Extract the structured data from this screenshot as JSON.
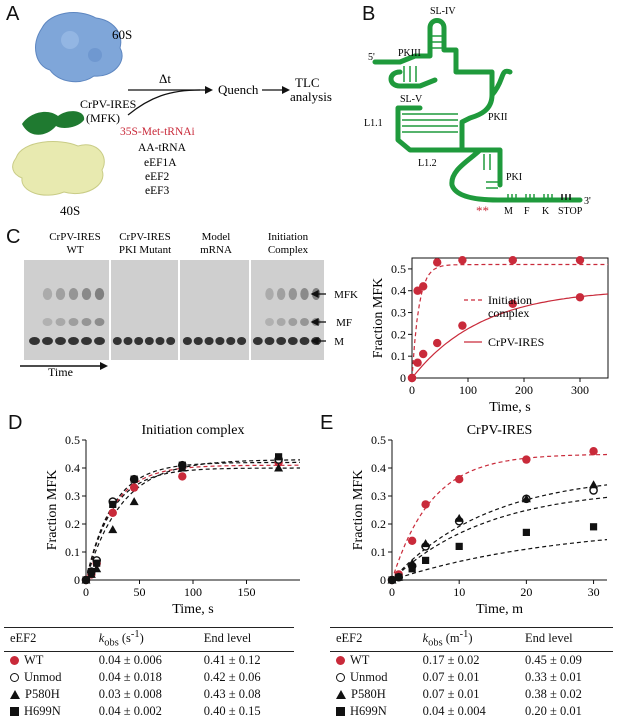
{
  "panels": {
    "a": "A",
    "b": "B",
    "c": "C",
    "d": "D",
    "e": "E"
  },
  "panelA": {
    "ribo_60s": "60S",
    "ribo_40s": "40S",
    "ires_name": "CrPV-IRES",
    "ires_sub": "(MFK)",
    "delta_t": "Δt",
    "quench": "Quench",
    "tlc_1": "TLC",
    "tlc_2": "analysis",
    "reagent_1": "35S-Met-tRNAi",
    "reagent_2": "AA-tRNA",
    "reagent_3": "eEF1A",
    "reagent_4": "eEF2",
    "reagent_5": "eEF3",
    "colors": {
      "ribo60": "#7fa6d9",
      "ribo40": "#e8eab0",
      "ires": "#1f7a30",
      "red": "#c92a3a"
    }
  },
  "panelB": {
    "labels": {
      "sl_iv": "SL-IV",
      "pkiii": "PKIII",
      "sl_v": "SL-V",
      "l11": "L1.1",
      "l12": "L1.2",
      "pkii": "PKII",
      "pki": "PKI",
      "five": "5'",
      "three": "3'",
      "m": "M",
      "f": "F",
      "k": "K",
      "stop": "STOP",
      "stars": "**"
    },
    "color": "#1f9a3c"
  },
  "panelC": {
    "lanes": {
      "wt_1": "CrPV-IRES",
      "wt_2": "WT",
      "pki_1": "CrPV-IRES",
      "pki_2": "PKI Mutant",
      "model_1": "Model",
      "model_2": "mRNA",
      "init_1": "Initiation",
      "init_2": "Complex"
    },
    "bands": {
      "mfk": "MFK",
      "mf": "MF",
      "m": "M"
    },
    "time_label": "Time"
  },
  "chart_data": [
    {
      "id": "C-plot",
      "type": "scatter",
      "xlabel": "Time, s",
      "ylabel": "Fraction MFK",
      "xlim": [
        0,
        350
      ],
      "ylim": [
        0,
        0.55
      ],
      "xticks": [
        0,
        100,
        200,
        300
      ],
      "yticks": [
        0,
        0.1,
        0.2,
        0.3,
        0.4,
        0.5
      ],
      "series": [
        {
          "name": "Initiation complex",
          "style": "dashed",
          "color": "#c92a3a",
          "x": [
            0,
            10,
            20,
            45,
            90,
            180,
            300
          ],
          "y": [
            0,
            0.4,
            0.42,
            0.53,
            0.54,
            0.54,
            0.54
          ],
          "fit": {
            "amp": 0.52,
            "k": 0.08
          }
        },
        {
          "name": "CrPV-IRES",
          "style": "solid",
          "color": "#c92a3a",
          "x": [
            0,
            10,
            20,
            45,
            90,
            180,
            300
          ],
          "y": [
            0,
            0.07,
            0.11,
            0.16,
            0.24,
            0.34,
            0.37
          ],
          "fit": {
            "amp": 0.41,
            "k": 0.008
          }
        }
      ]
    },
    {
      "id": "D-plot",
      "type": "scatter",
      "title": "Initiation complex",
      "xlabel": "Time, s",
      "ylabel": "Fraction MFK",
      "xlim": [
        0,
        200
      ],
      "ylim": [
        0,
        0.5
      ],
      "xticks": [
        0,
        50,
        100,
        150
      ],
      "yticks": [
        0,
        0.1,
        0.2,
        0.3,
        0.4,
        0.5
      ],
      "series": [
        {
          "name": "WT",
          "marker": "filled-circle",
          "color": "#c92a3a",
          "x": [
            0,
            5,
            10,
            25,
            45,
            90,
            180
          ],
          "y": [
            0,
            0.02,
            0.06,
            0.24,
            0.33,
            0.37,
            0.42
          ],
          "fit": {
            "amp": 0.41,
            "k": 0.04
          }
        },
        {
          "name": "Unmod",
          "marker": "open-circle",
          "color": "#111111",
          "x": [
            0,
            5,
            10,
            25,
            45,
            90,
            180
          ],
          "y": [
            0,
            0.03,
            0.07,
            0.28,
            0.36,
            0.41,
            0.43
          ],
          "fit": {
            "amp": 0.42,
            "k": 0.04
          }
        },
        {
          "name": "P580H",
          "marker": "triangle",
          "color": "#111111",
          "x": [
            0,
            5,
            10,
            25,
            45,
            90,
            180
          ],
          "y": [
            0,
            0.02,
            0.04,
            0.18,
            0.28,
            0.4,
            0.4
          ],
          "fit": {
            "amp": 0.43,
            "k": 0.03
          }
        },
        {
          "name": "H699N",
          "marker": "square",
          "color": "#111111",
          "x": [
            0,
            5,
            10,
            25,
            45,
            90,
            180
          ],
          "y": [
            0,
            0.03,
            0.06,
            0.27,
            0.36,
            0.41,
            0.44
          ],
          "fit": {
            "amp": 0.4,
            "k": 0.04
          }
        }
      ]
    },
    {
      "id": "E-plot",
      "type": "scatter",
      "title": "CrPV-IRES",
      "xlabel": "Time, m",
      "ylabel": "Fraction MFK",
      "xlim": [
        0,
        32
      ],
      "ylim": [
        0,
        0.5
      ],
      "xticks": [
        0,
        10,
        20,
        30
      ],
      "yticks": [
        0,
        0.1,
        0.2,
        0.3,
        0.4,
        0.5
      ],
      "series": [
        {
          "name": "WT",
          "marker": "filled-circle",
          "color": "#c92a3a",
          "x": [
            0,
            1,
            3,
            5,
            10,
            20,
            30
          ],
          "y": [
            0,
            0.02,
            0.14,
            0.27,
            0.36,
            0.43,
            0.46
          ],
          "fit": {
            "amp": 0.45,
            "k": 0.17
          }
        },
        {
          "name": "Unmod",
          "marker": "open-circle",
          "color": "#111111",
          "x": [
            0,
            1,
            3,
            5,
            10,
            20,
            30
          ],
          "y": [
            0,
            0.01,
            0.05,
            0.12,
            0.21,
            0.29,
            0.32
          ],
          "fit": {
            "amp": 0.33,
            "k": 0.07
          }
        },
        {
          "name": "P580H",
          "marker": "triangle",
          "color": "#111111",
          "x": [
            0,
            1,
            3,
            5,
            10,
            20,
            30
          ],
          "y": [
            0,
            0.01,
            0.06,
            0.13,
            0.22,
            0.29,
            0.34
          ],
          "fit": {
            "amp": 0.38,
            "k": 0.07
          }
        },
        {
          "name": "H699N",
          "marker": "square",
          "color": "#111111",
          "x": [
            0,
            1,
            3,
            5,
            10,
            20,
            30
          ],
          "y": [
            0,
            0.01,
            0.04,
            0.07,
            0.12,
            0.17,
            0.19
          ],
          "fit": {
            "amp": 0.2,
            "k": 0.04
          }
        }
      ]
    }
  ],
  "tableD": {
    "headers": {
      "c1": "eEF2",
      "c2a": "k",
      "c2b": "obs",
      "c2c": " (s",
      "c2d": "-1",
      "c2e": ")",
      "c3": "End level"
    },
    "rows": [
      {
        "name": "WT",
        "k": "0.04 ± 0.006",
        "end": "0.41 ± 0.12"
      },
      {
        "name": "Unmod",
        "k": "0.04 ± 0.018",
        "end": "0.42 ± 0.06"
      },
      {
        "name": "P580H",
        "k": "0.03 ± 0.008",
        "end": "0.43 ± 0.08"
      },
      {
        "name": "H699N",
        "k": "0.04 ± 0.002",
        "end": "0.40 ± 0.15"
      }
    ]
  },
  "tableE": {
    "headers": {
      "c1": "eEF2",
      "c2a": "k",
      "c2b": "obs",
      "c2c": " (m",
      "c2d": "-1",
      "c2e": ")",
      "c3": "End level"
    },
    "rows": [
      {
        "name": "WT",
        "k": "0.17 ± 0.02",
        "end": "0.45 ± 0.09"
      },
      {
        "name": "Unmod",
        "k": "0.07 ± 0.01",
        "end": "0.33 ± 0.01"
      },
      {
        "name": "P580H",
        "k": "0.07 ± 0.01",
        "end": "0.38 ± 0.02"
      },
      {
        "name": "H699N",
        "k": "0.04 ± 0.004",
        "end": "0.20 ± 0.01"
      }
    ]
  }
}
